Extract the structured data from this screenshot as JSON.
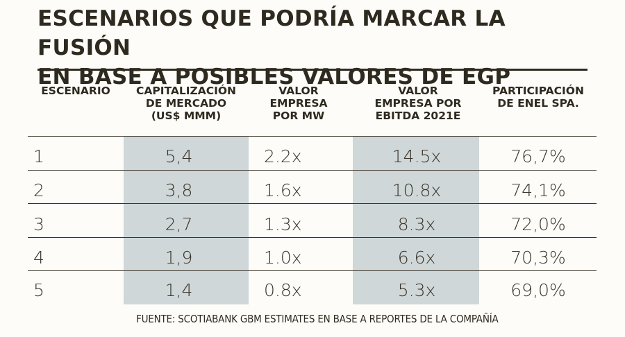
{
  "title_line1": "ESCENARIOS QUE PODRÍA MARCAR LA FUSIÓN",
  "title_line2": "EN BASE A POSIBLES VALORES DE EGP",
  "headers": {
    "escenario": "ESCENARIO",
    "capitalizacion": "CAPITALIZACIÓN\nDE MERCADO\n(US$ MMM)",
    "valor_mw": "VALOR\nEMPRESA\nPOR MW",
    "valor_ebitda": "VALOR\nEMPRESA POR\nEBITDA 2021E",
    "participacion": "PARTICIPACIÓN\nDE ENEL SPA."
  },
  "rows": [
    {
      "escenario": "1",
      "capitalizacion": "5,4",
      "valor_mw": "2.2x",
      "valor_ebitda": "14.5x",
      "participacion": "76,7%"
    },
    {
      "escenario": "2",
      "capitalizacion": "3,8",
      "valor_mw": "1.6x",
      "valor_ebitda": "10.8x",
      "participacion": "74,1%"
    },
    {
      "escenario": "3",
      "capitalizacion": "2,7",
      "valor_mw": "1.3x",
      "valor_ebitda": "8.3x",
      "participacion": "72,0%"
    },
    {
      "escenario": "4",
      "capitalizacion": "1,9",
      "valor_mw": "1.0x",
      "valor_ebitda": "6.6x",
      "participacion": "70,3%"
    },
    {
      "escenario": "5",
      "capitalizacion": "1,4",
      "valor_mw": "0.8x",
      "valor_ebitda": "5.3x",
      "participacion": "69,0%"
    }
  ],
  "source": "FUENTE: SCOTIABANK GBM ESTIMATES EN BASE A REPORTES DE LA COMPAÑÍA",
  "colors": {
    "shade": "#cfd7d8",
    "text": "#2f2a20"
  }
}
